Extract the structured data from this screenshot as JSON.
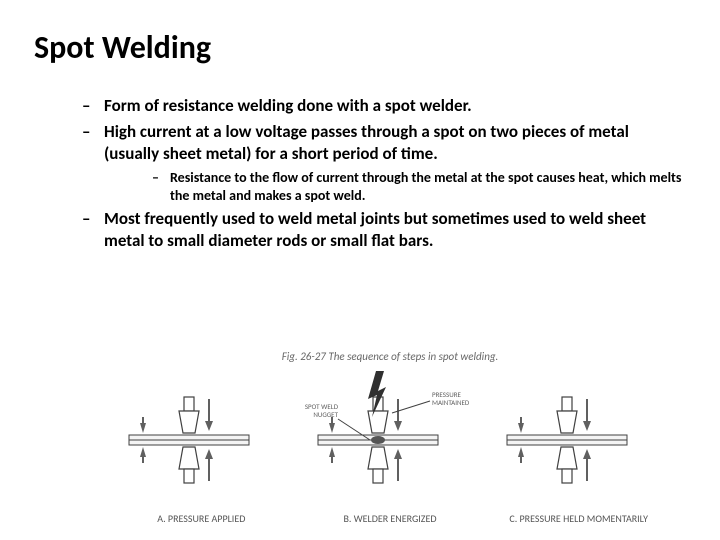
{
  "title": "Spot Welding",
  "bullets": {
    "b1": "Form of resistance welding done with a spot welder.",
    "b2": "High current at a low voltage passes through a spot on two pieces of metal (usually sheet metal) for a short period of time.",
    "b2_sub": "Resistance to the flow of current through the metal at the spot causes heat, which melts the metal and makes a spot weld.",
    "b3": "Most frequently used to weld metal joints but sometimes used to weld sheet metal to small diameter rods or small flat bars."
  },
  "figure": {
    "caption": "Fig. 26-27  The sequence of steps in spot welding.",
    "panels": [
      {
        "label": "A. PRESSURE APPLIED",
        "energized": false,
        "annotate_nugget": false,
        "annotate_pressure": false
      },
      {
        "label": "B. WELDER ENERGIZED",
        "energized": true,
        "annotate_nugget": true,
        "annotate_pressure": true
      },
      {
        "label": "C. PRESSURE HELD MOMENTARILY",
        "energized": false,
        "annotate_nugget": false,
        "annotate_pressure": false
      }
    ],
    "annotations": {
      "nugget": "SPOT WELD NUGGET",
      "pressure": "PRESSURE MAINTAINED"
    },
    "style": {
      "stroke": "#404040",
      "sheet_fill": "#f4f4f4",
      "electrode_fill": "#ffffff",
      "arrow_fill": "#606060",
      "spark_fill": "#303030",
      "nugget_fill": "#555555",
      "label_color": "#606060",
      "caption_color": "#6a6a6a"
    }
  }
}
